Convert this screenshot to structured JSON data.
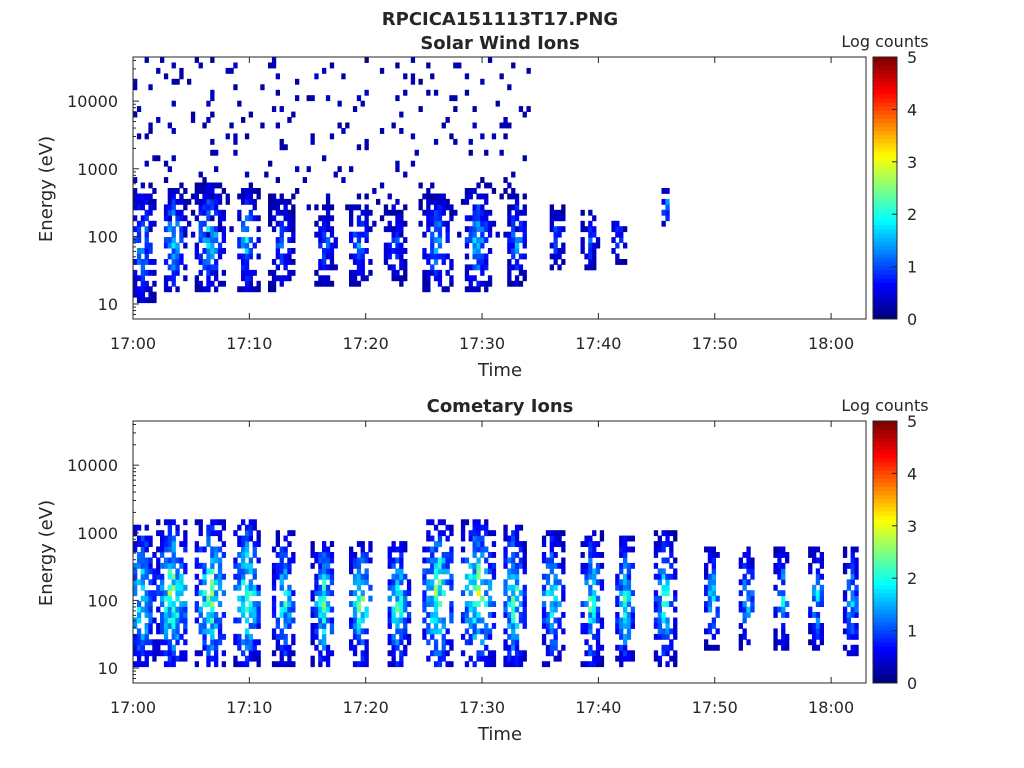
{
  "figure": {
    "title": "RPCICA151113T17.PNG"
  },
  "colorbar": {
    "label": "Log counts",
    "ticks": [
      "0",
      "1",
      "2",
      "3",
      "4",
      "5"
    ],
    "range": [
      0,
      5
    ],
    "colormap": "jet"
  },
  "chart_data": [
    {
      "type": "heatmap",
      "title": "Solar Wind Ions",
      "xlabel": "Time",
      "ylabel": "Energy (eV)",
      "yscale": "log",
      "xticks": [
        "17:00",
        "17:10",
        "17:20",
        "17:30",
        "17:40",
        "17:50",
        "18:00"
      ],
      "yticks": [
        "10",
        "100",
        "1000",
        "10000"
      ],
      "xlim_minutes": [
        0,
        63
      ],
      "ylim_eV": [
        6,
        45000
      ],
      "bursts": [
        {
          "t": 0.8,
          "w": 1.2,
          "emin": 10,
          "emax": 600,
          "peak": 1.6
        },
        {
          "t": 3.5,
          "w": 1.0,
          "emin": 15,
          "emax": 500,
          "peak": 2.0
        },
        {
          "t": 6.6,
          "w": 1.2,
          "emin": 15,
          "emax": 600,
          "peak": 2.0
        },
        {
          "t": 9.8,
          "w": 1.0,
          "emin": 15,
          "emax": 500,
          "peak": 1.8
        },
        {
          "t": 12.8,
          "w": 1.1,
          "emin": 15,
          "emax": 400,
          "peak": 1.3
        },
        {
          "t": 16.5,
          "w": 1.0,
          "emin": 20,
          "emax": 300,
          "peak": 1.3
        },
        {
          "t": 19.5,
          "w": 1.0,
          "emin": 20,
          "emax": 300,
          "peak": 1.5
        },
        {
          "t": 22.5,
          "w": 1.0,
          "emin": 20,
          "emax": 300,
          "peak": 1.2
        },
        {
          "t": 26.2,
          "w": 1.3,
          "emin": 15,
          "emax": 400,
          "peak": 1.8
        },
        {
          "t": 29.6,
          "w": 1.2,
          "emin": 15,
          "emax": 500,
          "peak": 1.9
        },
        {
          "t": 33.0,
          "w": 0.9,
          "emin": 20,
          "emax": 400,
          "peak": 1.6
        },
        {
          "t": 36.4,
          "w": 0.7,
          "emin": 30,
          "emax": 300,
          "peak": 1.2
        },
        {
          "t": 39.3,
          "w": 0.7,
          "emin": 30,
          "emax": 250,
          "peak": 1.2
        },
        {
          "t": 41.7,
          "w": 0.6,
          "emin": 40,
          "emax": 200,
          "peak": 1.4
        },
        {
          "t": 45.8,
          "w": 0.4,
          "emin": 150,
          "emax": 500,
          "peak": 2.0
        }
      ],
      "background_noise_until_minutes": 34
    },
    {
      "type": "heatmap",
      "title": "Cometary Ions",
      "xlabel": "Time",
      "ylabel": "Energy (eV)",
      "yscale": "log",
      "xticks": [
        "17:00",
        "17:10",
        "17:20",
        "17:30",
        "17:40",
        "17:50",
        "18:00"
      ],
      "yticks": [
        "10",
        "100",
        "1000",
        "10000"
      ],
      "xlim_minutes": [
        0,
        63
      ],
      "ylim_eV": [
        6,
        45000
      ],
      "bursts": [
        {
          "t": 0.8,
          "w": 1.3,
          "emin": 10,
          "emax": 1200,
          "peak": 2.5
        },
        {
          "t": 3.4,
          "w": 1.4,
          "emin": 10,
          "emax": 1500,
          "peak": 2.9
        },
        {
          "t": 6.7,
          "w": 1.4,
          "emin": 10,
          "emax": 1500,
          "peak": 2.8
        },
        {
          "t": 9.8,
          "w": 1.2,
          "emin": 10,
          "emax": 1500,
          "peak": 2.8
        },
        {
          "t": 13.0,
          "w": 1.0,
          "emin": 10,
          "emax": 1000,
          "peak": 2.3
        },
        {
          "t": 16.4,
          "w": 1.0,
          "emin": 10,
          "emax": 800,
          "peak": 2.6
        },
        {
          "t": 19.6,
          "w": 1.1,
          "emin": 10,
          "emax": 800,
          "peak": 2.6
        },
        {
          "t": 22.8,
          "w": 1.0,
          "emin": 10,
          "emax": 800,
          "peak": 2.6
        },
        {
          "t": 26.2,
          "w": 1.4,
          "emin": 10,
          "emax": 1500,
          "peak": 3.0
        },
        {
          "t": 29.6,
          "w": 1.5,
          "emin": 10,
          "emax": 1500,
          "peak": 3.0
        },
        {
          "t": 32.7,
          "w": 1.0,
          "emin": 10,
          "emax": 1200,
          "peak": 2.7
        },
        {
          "t": 36.0,
          "w": 1.0,
          "emin": 10,
          "emax": 1000,
          "peak": 2.4
        },
        {
          "t": 39.4,
          "w": 0.9,
          "emin": 10,
          "emax": 1000,
          "peak": 2.5
        },
        {
          "t": 42.3,
          "w": 0.9,
          "emin": 10,
          "emax": 900,
          "peak": 2.3
        },
        {
          "t": 45.7,
          "w": 0.9,
          "emin": 10,
          "emax": 1000,
          "peak": 2.4
        },
        {
          "t": 49.8,
          "w": 0.7,
          "emin": 20,
          "emax": 600,
          "peak": 2.0
        },
        {
          "t": 52.8,
          "w": 0.7,
          "emin": 20,
          "emax": 600,
          "peak": 2.0
        },
        {
          "t": 55.8,
          "w": 0.7,
          "emin": 20,
          "emax": 600,
          "peak": 2.0
        },
        {
          "t": 58.8,
          "w": 0.7,
          "emin": 20,
          "emax": 600,
          "peak": 2.0
        },
        {
          "t": 61.8,
          "w": 0.7,
          "emin": 15,
          "emax": 600,
          "peak": 1.9
        }
      ]
    }
  ]
}
